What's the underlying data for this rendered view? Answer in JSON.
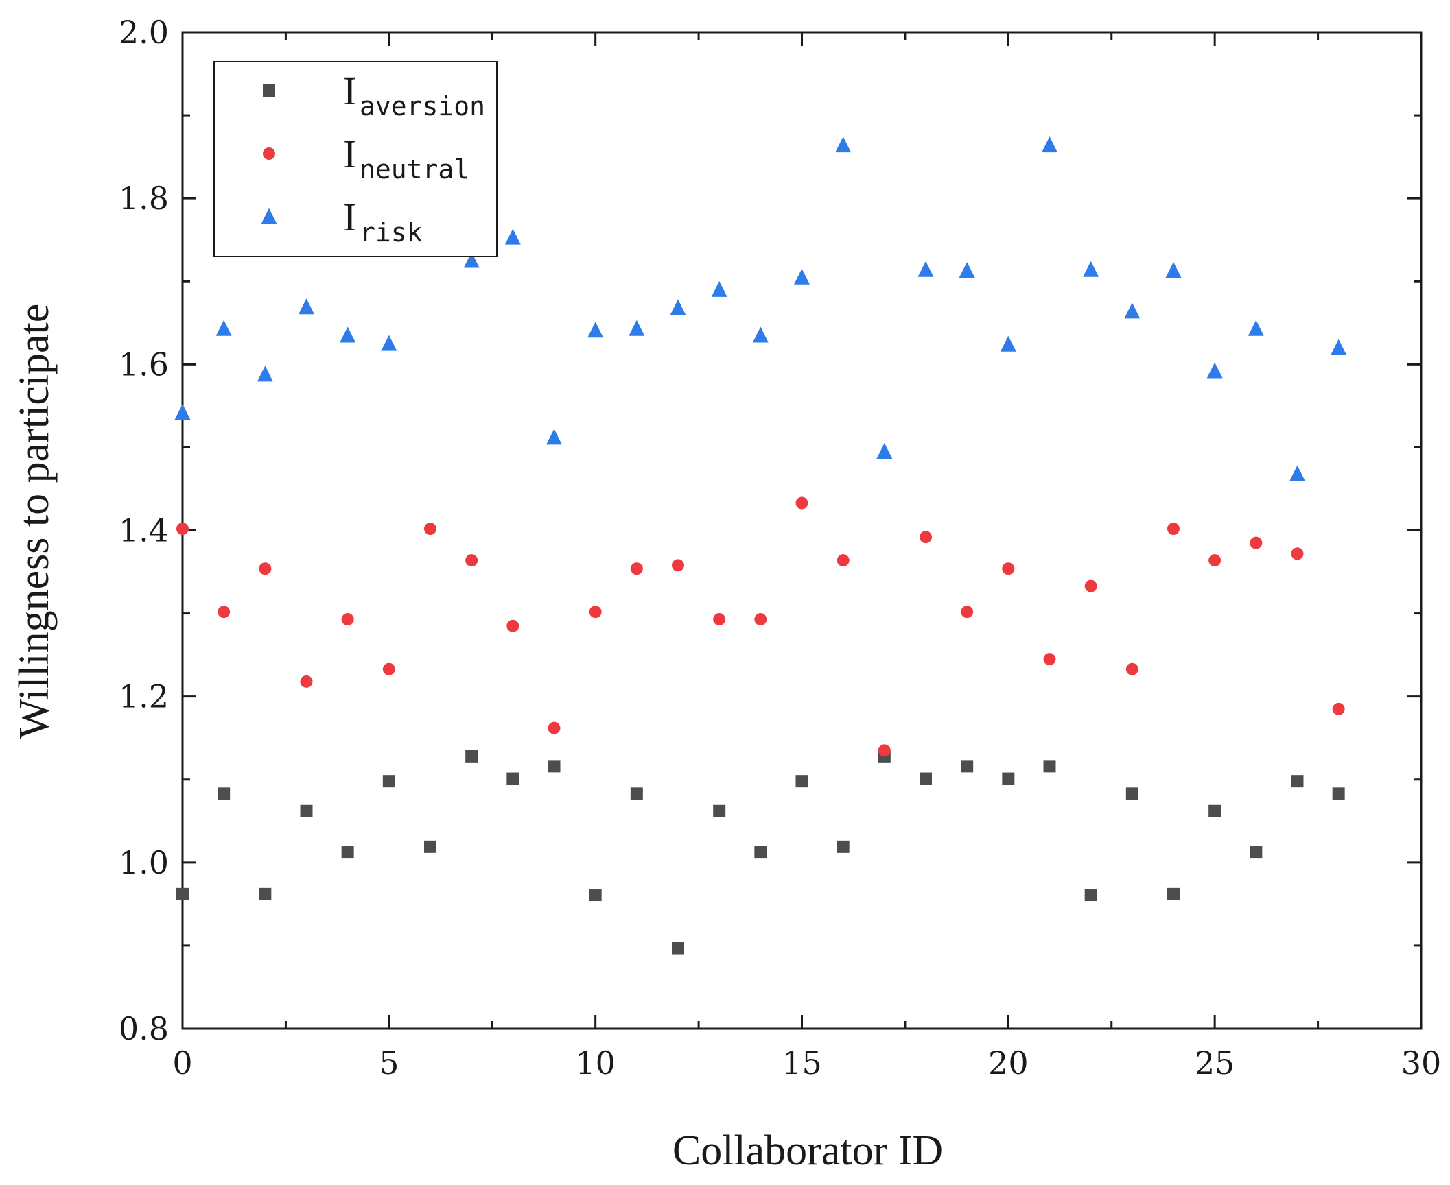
{
  "chart_data": {
    "type": "scatter",
    "xlabel": "Collaborator ID",
    "ylabel": "Willingness to participate",
    "xlim": [
      0,
      30
    ],
    "ylim": [
      0.8,
      2.0
    ],
    "x_ticks": [
      "0",
      "5",
      "10",
      "15",
      "20",
      "25",
      "30"
    ],
    "y_ticks": [
      "0.8",
      "1.0",
      "1.2",
      "1.4",
      "1.6",
      "1.8",
      "2.0"
    ],
    "grid": false,
    "legend_position": "top-left",
    "series": [
      {
        "name": "I",
        "name_sub": "aversion",
        "marker": "square",
        "color": "#4d4d4d",
        "x": [
          0,
          1,
          2,
          3,
          4,
          5,
          6,
          7,
          8,
          9,
          10,
          11,
          12,
          13,
          14,
          15,
          16,
          17,
          18,
          19,
          20,
          21,
          22,
          23,
          24,
          25,
          26,
          27,
          28
        ],
        "y": [
          0.962,
          1.083,
          0.962,
          1.062,
          1.013,
          1.098,
          1.019,
          1.128,
          1.101,
          1.116,
          0.961,
          1.083,
          0.897,
          1.062,
          1.013,
          1.098,
          1.019,
          1.128,
          1.101,
          1.116,
          1.101,
          1.116,
          0.961,
          1.083,
          0.962,
          1.062,
          1.013,
          1.098,
          1.083
        ]
      },
      {
        "name": "I",
        "name_sub": "neutral",
        "marker": "circle",
        "color": "#ee3a3f",
        "x": [
          0,
          1,
          2,
          3,
          4,
          5,
          6,
          7,
          8,
          9,
          10,
          11,
          12,
          13,
          14,
          15,
          16,
          17,
          18,
          19,
          20,
          21,
          22,
          23,
          24,
          25,
          26,
          27,
          28
        ],
        "y": [
          1.402,
          1.302,
          1.354,
          1.218,
          1.293,
          1.233,
          1.402,
          1.364,
          1.285,
          1.162,
          1.302,
          1.354,
          1.358,
          1.293,
          1.293,
          1.433,
          1.364,
          1.135,
          1.392,
          1.302,
          1.354,
          1.245,
          1.333,
          1.233,
          1.402,
          1.364,
          1.385,
          1.372,
          1.185
        ]
      },
      {
        "name": "I",
        "name_sub": "risk",
        "marker": "triangle",
        "color": "#2e7bea",
        "x": [
          0,
          1,
          2,
          3,
          4,
          5,
          6,
          7,
          8,
          9,
          10,
          11,
          12,
          13,
          14,
          15,
          16,
          17,
          18,
          19,
          20,
          21,
          22,
          23,
          24,
          25,
          26,
          27,
          28
        ],
        "y": [
          1.542,
          1.643,
          1.588,
          1.669,
          1.635,
          1.625,
          null,
          1.725,
          1.753,
          1.512,
          1.641,
          1.643,
          1.668,
          1.69,
          1.635,
          1.705,
          1.864,
          1.495,
          1.714,
          1.713,
          1.624,
          1.864,
          1.714,
          1.664,
          1.713,
          1.592,
          1.643,
          1.468,
          1.62
        ]
      }
    ]
  }
}
